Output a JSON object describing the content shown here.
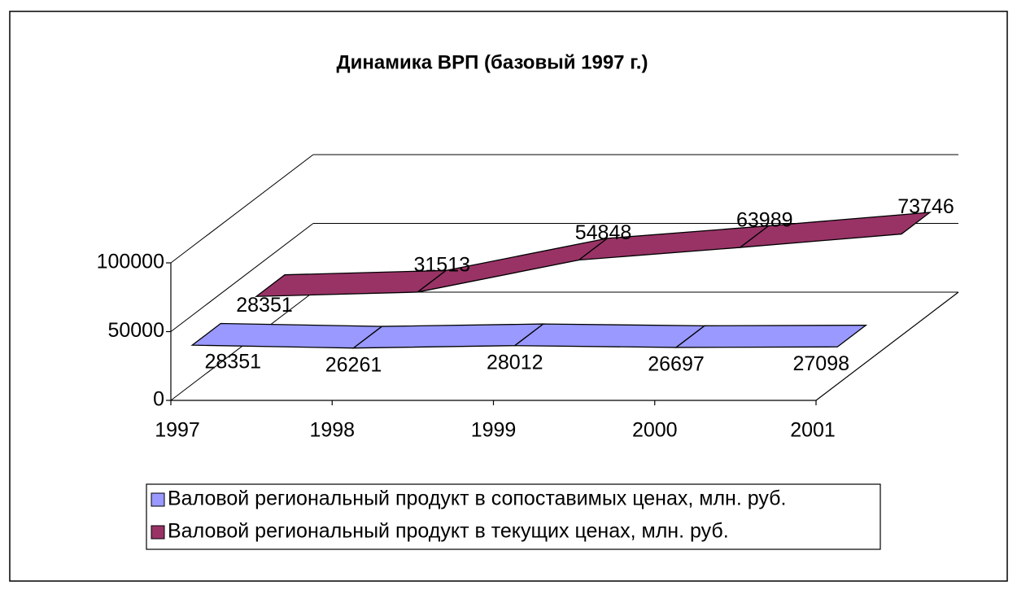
{
  "chart_data": {
    "type": "line3d",
    "title": "Динамика ВРП (базовый 1997 г.)",
    "categories": [
      "1997",
      "1998",
      "1999",
      "2000",
      "2001"
    ],
    "series": [
      {
        "name": "Валовой региональный продукт в сопоставимых ценах, млн. руб.",
        "color": "#9999ff",
        "values": [
          28351,
          26261,
          28012,
          26697,
          27098
        ]
      },
      {
        "name": "Валовой региональный продукт в текущих ценах, млн. руб.",
        "color": "#993366",
        "values": [
          28351,
          31513,
          54848,
          63989,
          73746
        ]
      }
    ],
    "ylim": [
      0,
      100000
    ],
    "yticks": [
      0,
      50000,
      100000
    ],
    "grid": true
  }
}
